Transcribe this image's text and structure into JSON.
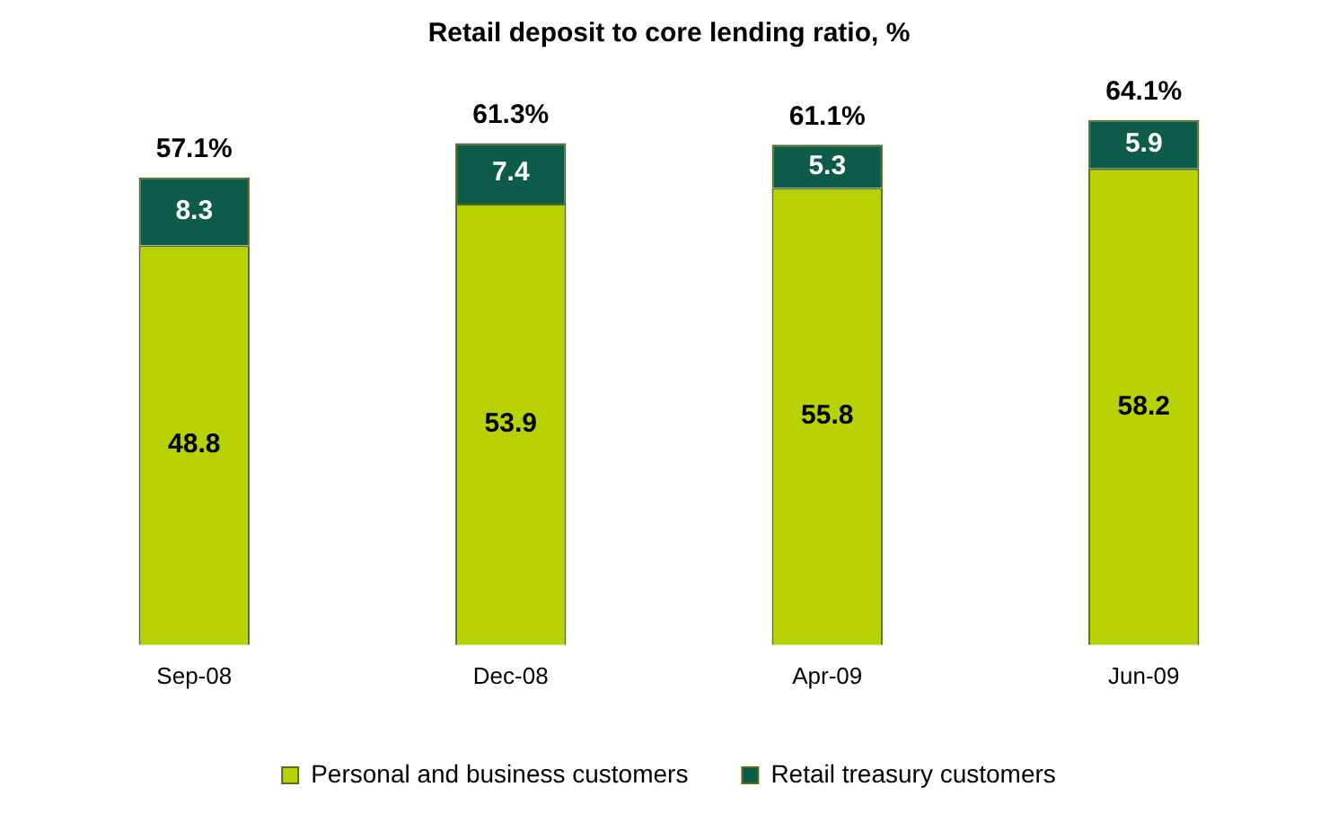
{
  "chart_data": {
    "type": "bar",
    "stacked": true,
    "title": "Retail deposit to core lending ratio, %",
    "categories": [
      "Sep-08",
      "Dec-08",
      "Apr-09",
      "Jun-09"
    ],
    "series": [
      {
        "name": "Personal and business customers",
        "color": "#b7d200",
        "values": [
          48.8,
          53.9,
          55.8,
          58.2
        ]
      },
      {
        "name": "Retail treasury customers",
        "color": "#0d5c4a",
        "values": [
          8.3,
          7.4,
          5.3,
          5.9
        ]
      }
    ],
    "data_labels": true,
    "totals": [
      "57.1%",
      "61.3%",
      "61.1%",
      "64.1%"
    ],
    "legend": "bottom",
    "grid": false,
    "tick_labels": "x"
  }
}
